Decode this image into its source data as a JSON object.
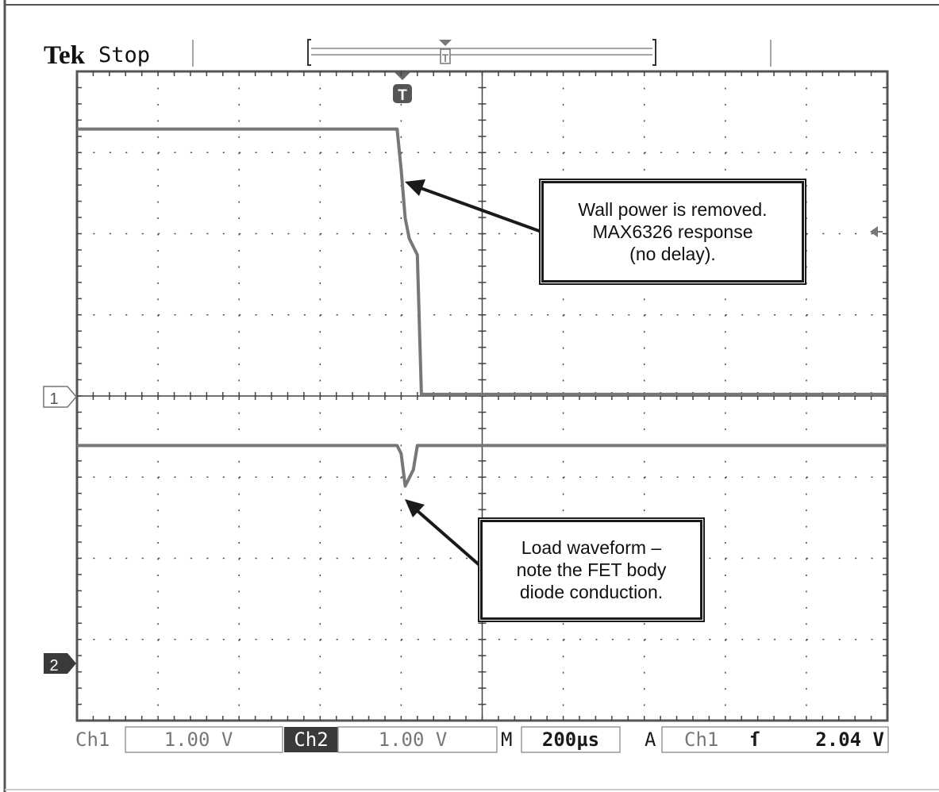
{
  "header": {
    "brand": "Tek",
    "status": "Stop",
    "trigger_marker": "T"
  },
  "markers": {
    "ch1": "1",
    "ch2": "2"
  },
  "status_bar": {
    "ch1_label": "Ch1",
    "ch1_scale": "1.00 V",
    "ch2_label": "Ch2",
    "ch2_scale": "1.00 V",
    "m_label": "M",
    "timebase": "200µs",
    "a_label": "A",
    "trigger_source": "Ch1",
    "trigger_slope": "ſ",
    "trigger_level": "2.04 V"
  },
  "annotations": {
    "wall": [
      "Wall power is removed.",
      "MAX6326 response",
      "(no delay)."
    ],
    "load": [
      "Load waveform –",
      "note the FET body",
      "diode conduction."
    ]
  },
  "chart_data": {
    "type": "line",
    "x_divisions": 10,
    "y_divisions": 8,
    "grid": true,
    "colors": {
      "trace": "#777777",
      "grid": "#444444",
      "frame": "#555555",
      "accent_ch2": "#333333"
    },
    "series": [
      {
        "x": [
          0,
          3.95,
          4.0,
          4.05,
          4.1,
          4.2,
          4.25,
          10
        ],
        "y": [
          3.3,
          3.3,
          2.8,
          2.2,
          1.95,
          1.75,
          0.03,
          0.03
        ]
      },
      {
        "x": [
          0,
          3.95,
          4.0,
          4.05,
          4.1,
          4.15,
          4.2,
          10
        ],
        "y": [
          -0.6,
          -0.6,
          -0.7,
          -1.1,
          -1.0,
          -0.9,
          -0.6,
          -0.6
        ]
      }
    ]
  }
}
